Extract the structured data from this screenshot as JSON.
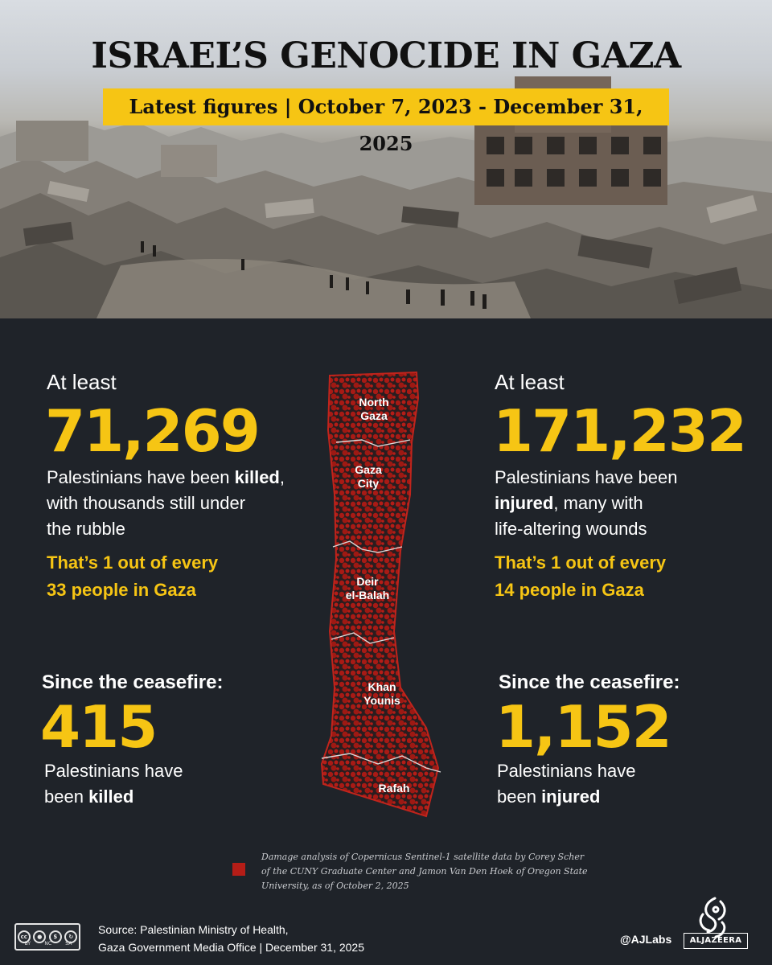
{
  "header": {
    "title": "ISRAEL’S GENOCIDE IN GAZA",
    "subtitle": "Latest figures | October 7, 2023 - December 31, 2025"
  },
  "killed": {
    "lead": "At least",
    "number": "71,269",
    "desc_pre": "Palestinians have been ",
    "desc_bold": "killed",
    "desc_post": ",",
    "desc_line2": "with thousands still under",
    "desc_line3": "the rubble",
    "ratio_line1": "That’s 1 out of every",
    "ratio_line2": "33 people in Gaza"
  },
  "injured": {
    "lead": "At least",
    "number": "171,232",
    "desc_line1": "Palestinians have been",
    "desc_bold": "injured",
    "desc_post": ", many with",
    "desc_line3": "life-altering wounds",
    "ratio_line1": "That’s 1 out of every",
    "ratio_line2": "14 people in Gaza"
  },
  "ceasefire_killed": {
    "lead": "Since the ceasefire:",
    "number": "415",
    "desc_line1": "Palestinians have",
    "desc_pre": "been ",
    "desc_bold": "killed"
  },
  "ceasefire_injured": {
    "lead": "Since the ceasefire:",
    "number": "1,152",
    "desc_line1": "Palestinians have",
    "desc_pre": "been ",
    "desc_bold": "injured"
  },
  "map": {
    "damage_color": "#b51d17",
    "regions": [
      {
        "line1": "North",
        "line2": "Gaza"
      },
      {
        "line1": "Gaza",
        "line2": "City"
      },
      {
        "line1": "Deir",
        "line2": "el-Balah"
      },
      {
        "line1": "Khan",
        "line2": "Younis"
      },
      {
        "line1": "Rafah",
        "line2": ""
      }
    ]
  },
  "legend": {
    "line1": "Damage analysis of Copernicus Sentinel-1 satellite data by  Corey Scher",
    "line2": "of the CUNY Graduate Center and Jamon Van Den Hoek of Oregon State",
    "line3": "University, as of  October 2, 2025"
  },
  "footer": {
    "license_icons": [
      "cc",
      "by",
      "nc",
      "sa"
    ],
    "license_labels": [
      "BY",
      "NC",
      "SA"
    ],
    "source_line1": "Source:  Palestinian Ministry of Health,",
    "source_line2": "Gaza Government Media Office   |   December 31, 2025",
    "handle": "@AJLabs",
    "brand": "ALJAZEERA"
  },
  "colors": {
    "accent": "#f6c514",
    "background": "#1f2329"
  }
}
